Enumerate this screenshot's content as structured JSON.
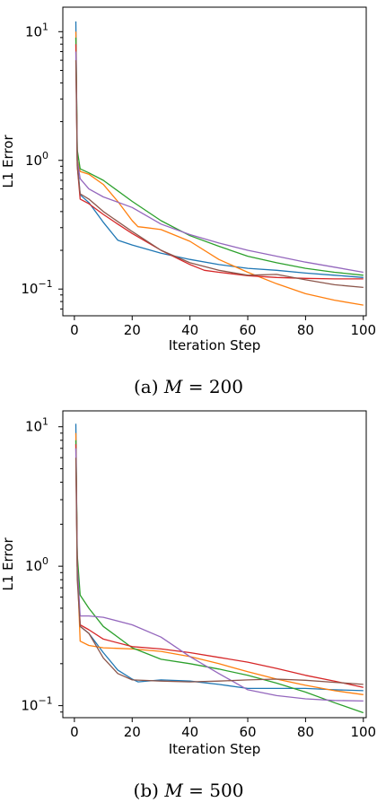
{
  "colors": {
    "blue": "#1f77b4",
    "orange": "#ff7f0e",
    "green": "#2ca02c",
    "red": "#d62728",
    "purple": "#9467bd",
    "brown": "#8c564b"
  },
  "chart_data": [
    {
      "type": "line",
      "caption_prefix": "(a)",
      "caption_math": "M",
      "caption_rest": " = 200",
      "xlabel": "Iteration Step",
      "ylabel": "L1 Error",
      "xlim": [
        -4,
        101
      ],
      "ylim": [
        0.062,
        15.5
      ],
      "yscale": "log",
      "grid": false,
      "xticks": [
        0,
        20,
        40,
        60,
        80,
        100
      ],
      "yticks": [
        {
          "value": 10,
          "base": "10",
          "exp": "1"
        },
        {
          "value": 1,
          "base": "10",
          "exp": "0"
        },
        {
          "value": 0.1,
          "base": "10",
          "exp": "−1"
        }
      ],
      "series": [
        {
          "color": "blue",
          "points": [
            [
              0.5,
              12
            ],
            [
              1,
              1
            ],
            [
              2,
              0.54
            ],
            [
              5,
              0.47
            ],
            [
              10,
              0.33
            ],
            [
              15,
              0.24
            ],
            [
              20,
              0.22
            ],
            [
              30,
              0.19
            ],
            [
              40,
              0.17
            ],
            [
              50,
              0.155
            ],
            [
              60,
              0.145
            ],
            [
              70,
              0.14
            ],
            [
              80,
              0.133
            ],
            [
              90,
              0.128
            ],
            [
              100,
              0.123
            ]
          ]
        },
        {
          "color": "orange",
          "points": [
            [
              0.5,
              10
            ],
            [
              1,
              1
            ],
            [
              2,
              0.82
            ],
            [
              5,
              0.78
            ],
            [
              10,
              0.65
            ],
            [
              15,
              0.48
            ],
            [
              20,
              0.34
            ],
            [
              22,
              0.305
            ],
            [
              25,
              0.3
            ],
            [
              30,
              0.29
            ],
            [
              40,
              0.235
            ],
            [
              50,
              0.17
            ],
            [
              60,
              0.135
            ],
            [
              70,
              0.11
            ],
            [
              80,
              0.092
            ],
            [
              90,
              0.082
            ],
            [
              100,
              0.075
            ]
          ]
        },
        {
          "color": "green",
          "points": [
            [
              0.5,
              9
            ],
            [
              1,
              1.2
            ],
            [
              2,
              0.86
            ],
            [
              5,
              0.8
            ],
            [
              10,
              0.7
            ],
            [
              20,
              0.48
            ],
            [
              30,
              0.34
            ],
            [
              40,
              0.26
            ],
            [
              50,
              0.215
            ],
            [
              60,
              0.18
            ],
            [
              70,
              0.16
            ],
            [
              80,
              0.145
            ],
            [
              90,
              0.135
            ],
            [
              100,
              0.128
            ]
          ]
        },
        {
          "color": "red",
          "points": [
            [
              0.5,
              8
            ],
            [
              1,
              0.9
            ],
            [
              2,
              0.5
            ],
            [
              5,
              0.46
            ],
            [
              10,
              0.38
            ],
            [
              15,
              0.32
            ],
            [
              20,
              0.27
            ],
            [
              30,
              0.2
            ],
            [
              40,
              0.155
            ],
            [
              45,
              0.14
            ],
            [
              50,
              0.135
            ],
            [
              60,
              0.127
            ],
            [
              70,
              0.123
            ],
            [
              80,
              0.121
            ],
            [
              90,
              0.12
            ],
            [
              100,
              0.12
            ]
          ]
        },
        {
          "color": "purple",
          "points": [
            [
              0.5,
              7
            ],
            [
              1,
              1
            ],
            [
              2,
              0.72
            ],
            [
              5,
              0.6
            ],
            [
              10,
              0.52
            ],
            [
              20,
              0.43
            ],
            [
              30,
              0.32
            ],
            [
              40,
              0.265
            ],
            [
              50,
              0.228
            ],
            [
              60,
              0.2
            ],
            [
              70,
              0.18
            ],
            [
              80,
              0.162
            ],
            [
              90,
              0.148
            ],
            [
              100,
              0.135
            ]
          ]
        },
        {
          "color": "brown",
          "points": [
            [
              0.5,
              6
            ],
            [
              1,
              0.9
            ],
            [
              2,
              0.55
            ],
            [
              5,
              0.5
            ],
            [
              10,
              0.4
            ],
            [
              20,
              0.28
            ],
            [
              30,
              0.2
            ],
            [
              40,
              0.16
            ],
            [
              50,
              0.14
            ],
            [
              60,
              0.128
            ],
            [
              70,
              0.13
            ],
            [
              80,
              0.118
            ],
            [
              90,
              0.108
            ],
            [
              100,
              0.103
            ]
          ]
        }
      ]
    },
    {
      "type": "line",
      "caption_prefix": "(b)",
      "caption_math": "M",
      "caption_rest": " = 500",
      "xlabel": "Iteration Step",
      "ylabel": "L1 Error",
      "xlim": [
        -4,
        101
      ],
      "ylim": [
        0.082,
        13
      ],
      "yscale": "log",
      "grid": false,
      "xticks": [
        0,
        20,
        40,
        60,
        80,
        100
      ],
      "yticks": [
        {
          "value": 10,
          "base": "10",
          "exp": "1"
        },
        {
          "value": 1,
          "base": "10",
          "exp": "0"
        },
        {
          "value": 0.1,
          "base": "10",
          "exp": "−1"
        }
      ],
      "series": [
        {
          "color": "blue",
          "points": [
            [
              0.5,
              10.5
            ],
            [
              1,
              1
            ],
            [
              2,
              0.37
            ],
            [
              5,
              0.33
            ],
            [
              10,
              0.24
            ],
            [
              15,
              0.18
            ],
            [
              20,
              0.155
            ],
            [
              22,
              0.148
            ],
            [
              30,
              0.153
            ],
            [
              40,
              0.15
            ],
            [
              50,
              0.142
            ],
            [
              60,
              0.133
            ],
            [
              70,
              0.133
            ],
            [
              80,
              0.133
            ],
            [
              90,
              0.13
            ],
            [
              100,
              0.128
            ]
          ]
        },
        {
          "color": "orange",
          "points": [
            [
              0.5,
              9
            ],
            [
              1,
              1
            ],
            [
              2,
              0.29
            ],
            [
              5,
              0.27
            ],
            [
              10,
              0.26
            ],
            [
              20,
              0.255
            ],
            [
              30,
              0.245
            ],
            [
              40,
              0.225
            ],
            [
              50,
              0.2
            ],
            [
              60,
              0.175
            ],
            [
              70,
              0.155
            ],
            [
              80,
              0.14
            ],
            [
              90,
              0.128
            ],
            [
              100,
              0.12
            ]
          ]
        },
        {
          "color": "green",
          "points": [
            [
              0.5,
              8
            ],
            [
              1,
              1.2
            ],
            [
              2,
              0.62
            ],
            [
              5,
              0.5
            ],
            [
              10,
              0.37
            ],
            [
              20,
              0.26
            ],
            [
              30,
              0.215
            ],
            [
              40,
              0.2
            ],
            [
              50,
              0.183
            ],
            [
              60,
              0.165
            ],
            [
              70,
              0.145
            ],
            [
              80,
              0.125
            ],
            [
              90,
              0.105
            ],
            [
              100,
              0.089
            ]
          ]
        },
        {
          "color": "red",
          "points": [
            [
              0.5,
              7.5
            ],
            [
              1,
              1
            ],
            [
              2,
              0.38
            ],
            [
              5,
              0.35
            ],
            [
              10,
              0.3
            ],
            [
              20,
              0.265
            ],
            [
              30,
              0.255
            ],
            [
              40,
              0.24
            ],
            [
              50,
              0.222
            ],
            [
              60,
              0.205
            ],
            [
              70,
              0.185
            ],
            [
              80,
              0.165
            ],
            [
              90,
              0.15
            ],
            [
              100,
              0.135
            ]
          ]
        },
        {
          "color": "purple",
          "points": [
            [
              0.5,
              7
            ],
            [
              1,
              1
            ],
            [
              2,
              0.44
            ],
            [
              5,
              0.44
            ],
            [
              10,
              0.43
            ],
            [
              20,
              0.38
            ],
            [
              30,
              0.31
            ],
            [
              40,
              0.225
            ],
            [
              50,
              0.17
            ],
            [
              60,
              0.13
            ],
            [
              70,
              0.118
            ],
            [
              80,
              0.112
            ],
            [
              90,
              0.109
            ],
            [
              100,
              0.108
            ]
          ]
        },
        {
          "color": "brown",
          "points": [
            [
              0.5,
              6
            ],
            [
              1,
              0.8
            ],
            [
              2,
              0.37
            ],
            [
              5,
              0.33
            ],
            [
              10,
              0.22
            ],
            [
              15,
              0.17
            ],
            [
              20,
              0.153
            ],
            [
              30,
              0.15
            ],
            [
              40,
              0.148
            ],
            [
              50,
              0.15
            ],
            [
              60,
              0.153
            ],
            [
              70,
              0.155
            ],
            [
              80,
              0.152
            ],
            [
              90,
              0.147
            ],
            [
              100,
              0.142
            ]
          ]
        }
      ]
    }
  ]
}
